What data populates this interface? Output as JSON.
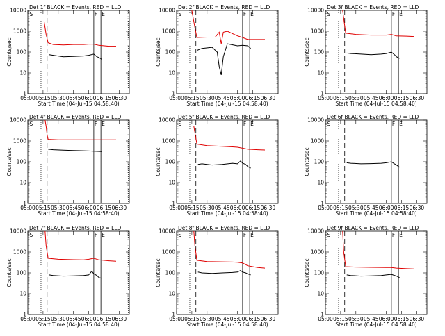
{
  "colors": {
    "events": "#000000",
    "lld": "#e00000"
  },
  "x_ticks": [
    "05:00",
    "05:15",
    "05:30",
    "05:45",
    "06:00",
    "06:15",
    "06:30"
  ],
  "y_ticks": [
    "1",
    "10",
    "100",
    "1000",
    "10000"
  ],
  "chart_data": [
    {
      "type": "line",
      "title": "Det 1f BLACK = Events, RED = LLD",
      "xlabel": "Start Time (04-Jul-15 04:58:40)",
      "ylabel": "Counts/sec",
      "ylim": [
        1,
        10000
      ],
      "yscale": "log",
      "xlim": [
        "05:00",
        "06:40"
      ],
      "markers": [
        {
          "label": "S",
          "time": "05:01"
        },
        {
          "label": "F",
          "time": "06:05"
        },
        {
          "label": "E",
          "time": "06:12"
        }
      ],
      "dotted": [
        "05:13",
        "06:39"
      ],
      "dashed": "05:19",
      "series": [
        {
          "name": "LLD",
          "color": "red",
          "x": [
            "05:16",
            "05:18",
            "05:20",
            "05:25",
            "05:35",
            "05:45",
            "05:55",
            "06:00",
            "06:05",
            "06:10",
            "06:20",
            "06:27"
          ],
          "y": [
            3000,
            700,
            280,
            230,
            220,
            230,
            230,
            240,
            240,
            210,
            190,
            190
          ]
        },
        {
          "name": "Events",
          "color": "black",
          "x": [
            "05:21",
            "05:25",
            "05:35",
            "05:45",
            "05:55",
            "06:00",
            "06:05",
            "06:08",
            "06:10",
            "06:13"
          ],
          "y": [
            75,
            70,
            60,
            62,
            65,
            70,
            80,
            60,
            55,
            45
          ]
        }
      ]
    },
    {
      "type": "line",
      "title": "Det 2f BLACK = Events, RED = LLD",
      "xlabel": "Start Time (04-Jul-15 04:58:40)",
      "ylabel": "Counts/sec",
      "ylim": [
        1,
        10000
      ],
      "yscale": "log",
      "xlim": [
        "05:00",
        "06:40"
      ],
      "markers": [
        {
          "label": "S",
          "time": "05:01"
        },
        {
          "label": "F",
          "time": "06:05"
        },
        {
          "label": "E",
          "time": "06:12"
        }
      ],
      "dotted": [
        "05:13",
        "06:39"
      ],
      "dashed": "05:19",
      "series": [
        {
          "name": "LLD",
          "color": "red",
          "x": [
            "05:15",
            "05:18",
            "05:20",
            "05:30",
            "05:38",
            "05:42",
            "05:44",
            "05:46",
            "05:50",
            "06:00",
            "06:05",
            "06:10",
            "06:20",
            "06:27"
          ],
          "y": [
            10000,
            1500,
            500,
            520,
            520,
            900,
            250,
            900,
            1000,
            600,
            500,
            400,
            400,
            400
          ]
        },
        {
          "name": "Events",
          "color": "black",
          "x": [
            "05:20",
            "05:25",
            "05:35",
            "05:40",
            "05:42",
            "05:44",
            "05:46",
            "05:50",
            "06:00",
            "06:05",
            "06:10",
            "06:13"
          ],
          "y": [
            120,
            150,
            170,
            100,
            20,
            8,
            60,
            250,
            200,
            210,
            200,
            150
          ]
        }
      ]
    },
    {
      "type": "line",
      "title": "Det 3f BLACK = Events, RED = LLD",
      "xlabel": "Start Time (04-Jul-15 04:58:40)",
      "ylabel": "Counts/sec",
      "ylim": [
        1,
        10000
      ],
      "yscale": "log",
      "xlim": [
        "05:00",
        "06:40"
      ],
      "markers": [
        {
          "label": "S",
          "time": "05:01"
        },
        {
          "label": "F",
          "time": "06:05"
        },
        {
          "label": "E",
          "time": "06:12"
        }
      ],
      "dotted": [
        "05:13",
        "06:39"
      ],
      "dashed": "05:19",
      "series": [
        {
          "name": "LLD",
          "color": "red",
          "x": [
            "05:17",
            "05:20",
            "05:30",
            "05:45",
            "06:00",
            "06:05",
            "06:10",
            "06:20",
            "06:27"
          ],
          "y": [
            10000,
            800,
            700,
            650,
            650,
            700,
            600,
            580,
            560
          ]
        },
        {
          "name": "Events",
          "color": "black",
          "x": [
            "05:21",
            "05:25",
            "05:35",
            "05:45",
            "05:55",
            "06:00",
            "06:05",
            "06:08",
            "06:10",
            "06:13"
          ],
          "y": [
            90,
            85,
            80,
            75,
            80,
            85,
            100,
            75,
            60,
            50
          ]
        }
      ]
    },
    {
      "type": "line",
      "title": "Det 4f BLACK = Events, RED = LLD",
      "xlabel": "Start Time (04-Jul-15 04:58:40)",
      "ylabel": "Counts/sec",
      "ylim": [
        1,
        10000
      ],
      "yscale": "log",
      "xlim": [
        "05:00",
        "06:40"
      ],
      "markers": [
        {
          "label": "S",
          "time": "05:01"
        },
        {
          "label": "F",
          "time": "06:05"
        },
        {
          "label": "E",
          "time": "06:12"
        }
      ],
      "dotted": [
        "05:13",
        "06:39"
      ],
      "dashed": "05:19",
      "series": [
        {
          "name": "LLD",
          "color": "red",
          "x": [
            "05:17",
            "05:18",
            "05:19",
            "05:20",
            "05:30",
            "05:45",
            "06:00",
            "06:15",
            "06:27"
          ],
          "y": [
            10000,
            5000,
            2000,
            1200,
            1150,
            1150,
            1150,
            1150,
            1150
          ]
        },
        {
          "name": "Events",
          "color": "black",
          "x": [
            "05:20",
            "05:25",
            "05:35",
            "05:45",
            "05:55",
            "06:00",
            "06:05",
            "06:13"
          ],
          "y": [
            400,
            380,
            360,
            350,
            340,
            330,
            320,
            310
          ]
        }
      ]
    },
    {
      "type": "line",
      "title": "Det 5f BLACK = Events, RED = LLD",
      "xlabel": "Start Time (04-Jul-15 04:58:40)",
      "ylabel": "Counts/sec",
      "ylim": [
        1,
        10000
      ],
      "yscale": "log",
      "xlim": [
        "05:00",
        "06:40"
      ],
      "markers": [
        {
          "label": "S",
          "time": "05:01"
        },
        {
          "label": "F",
          "time": "06:05"
        },
        {
          "label": "E",
          "time": "06:12"
        }
      ],
      "dotted": [
        "05:13",
        "06:39"
      ],
      "dashed": "05:19",
      "series": [
        {
          "name": "LLD",
          "color": "red",
          "x": [
            "05:17",
            "05:20",
            "05:30",
            "05:45",
            "05:55",
            "06:00",
            "06:05",
            "06:10",
            "06:20",
            "06:27"
          ],
          "y": [
            5000,
            700,
            600,
            550,
            520,
            500,
            450,
            400,
            380,
            370
          ]
        },
        {
          "name": "Events",
          "color": "black",
          "x": [
            "05:21",
            "05:25",
            "05:35",
            "05:45",
            "05:55",
            "06:00",
            "06:03",
            "06:05",
            "06:08",
            "06:10",
            "06:13"
          ],
          "y": [
            75,
            80,
            70,
            75,
            85,
            80,
            110,
            85,
            75,
            60,
            50
          ]
        }
      ]
    },
    {
      "type": "line",
      "title": "Det 6f BLACK = Events, RED = LLD",
      "xlabel": "Start Time (04-Jul-15 04:58:40)",
      "ylabel": "Counts/sec",
      "ylim": [
        1,
        10000
      ],
      "yscale": "log",
      "xlim": [
        "05:00",
        "06:40"
      ],
      "markers": [
        {
          "label": "S",
          "time": "05:01"
        },
        {
          "label": "F",
          "time": "06:05"
        },
        {
          "label": "E",
          "time": "06:12"
        }
      ],
      "dotted": [
        "05:13",
        "06:39"
      ],
      "dashed": "05:19",
      "series": [
        {
          "name": "Events",
          "color": "black",
          "x": [
            "05:21",
            "05:25",
            "05:35",
            "05:45",
            "05:55",
            "06:00",
            "06:05",
            "06:08",
            "06:10",
            "06:13"
          ],
          "y": [
            90,
            85,
            80,
            82,
            85,
            90,
            100,
            80,
            70,
            55
          ]
        }
      ]
    },
    {
      "type": "line",
      "title": "Det 7f BLACK = Events, RED = LLD",
      "xlabel": "Start Time (04-Jul-15 04:58:40)",
      "ylabel": "Counts/sec",
      "ylim": [
        1,
        10000
      ],
      "yscale": "log",
      "xlim": [
        "05:00",
        "06:40"
      ],
      "markers": [
        {
          "label": "S",
          "time": "05:01"
        },
        {
          "label": "F",
          "time": "06:05"
        },
        {
          "label": "E",
          "time": "06:12"
        }
      ],
      "dotted": [
        "05:13",
        "06:39"
      ],
      "dashed": "05:19",
      "series": [
        {
          "name": "LLD",
          "color": "red",
          "x": [
            "05:17",
            "05:18",
            "05:20",
            "05:30",
            "05:45",
            "05:55",
            "06:00",
            "06:05",
            "06:10",
            "06:20",
            "06:27"
          ],
          "y": [
            10000,
            2000,
            500,
            450,
            430,
            420,
            450,
            500,
            420,
            380,
            360
          ]
        },
        {
          "name": "Events",
          "color": "black",
          "x": [
            "05:21",
            "05:25",
            "05:35",
            "05:45",
            "05:55",
            "06:00",
            "06:03",
            "06:05",
            "06:08",
            "06:10",
            "06:13"
          ],
          "y": [
            80,
            75,
            70,
            72,
            75,
            80,
            120,
            90,
            75,
            60,
            55
          ]
        }
      ]
    },
    {
      "type": "line",
      "title": "Det 8f BLACK = Events, RED = LLD",
      "xlabel": "Start Time (04-Jul-15 04:58:40)",
      "ylabel": "Counts/sec",
      "ylim": [
        1,
        10000
      ],
      "yscale": "log",
      "xlim": [
        "05:00",
        "06:40"
      ],
      "markers": [
        {
          "label": "S",
          "time": "05:01"
        },
        {
          "label": "F",
          "time": "06:05"
        },
        {
          "label": "E",
          "time": "06:12"
        }
      ],
      "dotted": [
        "05:13",
        "06:39"
      ],
      "dashed": "05:19",
      "series": [
        {
          "name": "LLD",
          "color": "red",
          "x": [
            "05:17",
            "05:18",
            "05:20",
            "05:30",
            "05:45",
            "05:55",
            "06:00",
            "06:05",
            "06:10",
            "06:20",
            "06:27"
          ],
          "y": [
            10000,
            2000,
            400,
            350,
            340,
            330,
            320,
            300,
            220,
            180,
            170
          ]
        },
        {
          "name": "Events",
          "color": "black",
          "x": [
            "05:21",
            "05:25",
            "05:35",
            "05:45",
            "05:55",
            "06:00",
            "06:03",
            "06:05",
            "06:08",
            "06:10",
            "06:13"
          ],
          "y": [
            110,
            100,
            95,
            100,
            105,
            110,
            130,
            110,
            100,
            90,
            80
          ]
        }
      ]
    },
    {
      "type": "line",
      "title": "Det 9f BLACK = Events, RED = LLD",
      "xlabel": "Start Time (04-Jul-15 04:58:40)",
      "ylabel": "Counts/sec",
      "ylim": [
        1,
        10000
      ],
      "yscale": "log",
      "xlim": [
        "05:00",
        "06:40"
      ],
      "markers": [
        {
          "label": "S",
          "time": "05:01"
        },
        {
          "label": "F",
          "time": "06:05"
        },
        {
          "label": "E",
          "time": "06:12"
        }
      ],
      "dotted": [
        "05:13",
        "06:39"
      ],
      "dashed": "05:19",
      "series": [
        {
          "name": "LLD",
          "color": "red",
          "x": [
            "05:17",
            "05:18",
            "05:20",
            "05:30",
            "05:45",
            "06:00",
            "06:05",
            "06:10",
            "06:20",
            "06:27"
          ],
          "y": [
            10000,
            1000,
            200,
            190,
            185,
            180,
            180,
            170,
            160,
            155
          ]
        },
        {
          "name": "Events",
          "color": "black",
          "x": [
            "05:21",
            "05:25",
            "05:35",
            "05:45",
            "05:55",
            "06:00",
            "06:05",
            "06:10",
            "06:13"
          ],
          "y": [
            80,
            75,
            70,
            72,
            75,
            80,
            85,
            70,
            60
          ]
        }
      ]
    }
  ]
}
